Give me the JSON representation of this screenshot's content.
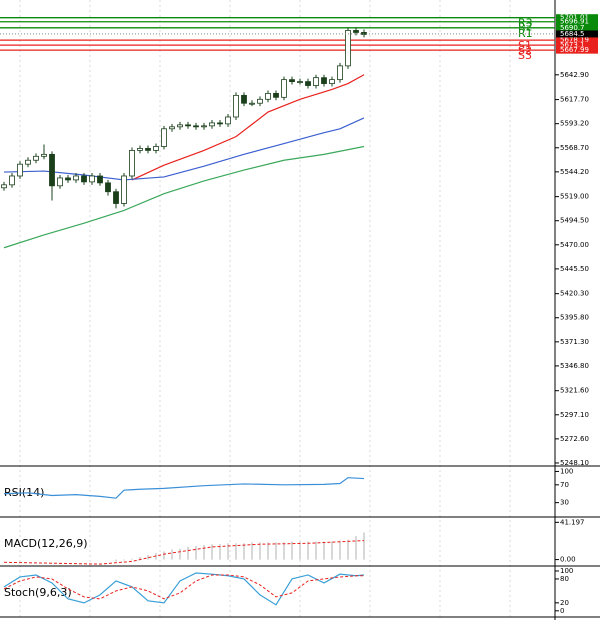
{
  "chart_data": [
    {
      "type": "candlestick",
      "panel": [
        0,
        466
      ],
      "color": "#1b3f1b",
      "ylim": [
        5245,
        5719
      ],
      "yticks": [
        {
          "value": 5642.9,
          "label": "5642.90"
        },
        {
          "value": 5617.7,
          "label": "5617.70"
        },
        {
          "value": 5593.2,
          "label": "5593.20"
        },
        {
          "value": 5568.7,
          "label": "5568.70"
        },
        {
          "value": 5544.2,
          "label": "5544.20"
        },
        {
          "value": 5519,
          "label": "5519.00"
        },
        {
          "value": 5494.5,
          "label": "5494.50"
        },
        {
          "value": 5470,
          "label": "5470.00"
        },
        {
          "value": 5445.5,
          "label": "5445.50"
        },
        {
          "value": 5420.3,
          "label": "5420.30"
        },
        {
          "value": 5395.8,
          "label": "5395.80"
        },
        {
          "value": 5371.3,
          "label": "5371.30"
        },
        {
          "value": 5346.8,
          "label": "5346.80"
        },
        {
          "value": 5321.6,
          "label": "5321.60"
        },
        {
          "value": 5297.1,
          "label": "5297.10"
        },
        {
          "value": 5272.6,
          "label": "5272.60"
        },
        {
          "value": 5248.1,
          "label": "5248.10"
        }
      ],
      "open": [
        5528,
        5531,
        5540,
        5552,
        5556,
        5560,
        5562,
        5530,
        5538,
        5536,
        5540,
        5534,
        5540,
        5533,
        5524,
        5512,
        5540,
        5566,
        5568,
        5566,
        5570,
        5588,
        5590,
        5592,
        5591,
        5590,
        5591,
        5594,
        5593,
        5600,
        5622,
        5614,
        5614,
        5618,
        5624,
        5620,
        5638,
        5636,
        5636,
        5632,
        5640,
        5634,
        5638,
        5652,
        5688,
        5686
      ],
      "high": [
        5534,
        5543,
        5555,
        5559,
        5563,
        5572,
        5565,
        5541,
        5541,
        5543,
        5543,
        5543,
        5543,
        5536,
        5527,
        5543,
        5569,
        5571,
        5571,
        5573,
        5591,
        5593,
        5595,
        5595,
        5594,
        5594,
        5597,
        5597,
        5603,
        5625,
        5625,
        5617,
        5621,
        5627,
        5627,
        5641,
        5641,
        5639,
        5639,
        5643,
        5643,
        5641,
        5655,
        5691,
        5691,
        5689
      ],
      "low": [
        5525,
        5528,
        5537,
        5549,
        5553,
        5557,
        5515,
        5527,
        5533,
        5533,
        5531,
        5531,
        5530,
        5520,
        5507,
        5509,
        5537,
        5563,
        5563,
        5563,
        5567,
        5585,
        5587,
        5588,
        5587,
        5587,
        5588,
        5590,
        5590,
        5597,
        5611,
        5611,
        5611,
        5615,
        5617,
        5617,
        5633,
        5633,
        5629,
        5629,
        5631,
        5631,
        5635,
        5649,
        5683,
        5681
      ],
      "close": [
        5531,
        5540,
        5552,
        5556,
        5560,
        5562,
        5530,
        5538,
        5536,
        5540,
        5534,
        5540,
        5533,
        5524,
        5512,
        5540,
        5566,
        5568,
        5566,
        5570,
        5588,
        5590,
        5592,
        5591,
        5590,
        5591,
        5594,
        5593,
        5600,
        5622,
        5614,
        5614,
        5618,
        5624,
        5620,
        5638,
        5636,
        5636,
        5632,
        5640,
        5634,
        5638,
        5652,
        5688,
        5686,
        5684
      ],
      "series": [
        {
          "color": "#e8211d",
          "x": [
            16,
            20,
            25,
            29,
            33,
            37,
            41,
            43,
            45
          ],
          "values": [
            5536,
            5551,
            5566,
            5580,
            5605,
            5618,
            5628,
            5634,
            5643
          ]
        },
        {
          "color": "#3b5fcf",
          "x": [
            0,
            5,
            10,
            15,
            20,
            25,
            30,
            35,
            40,
            42,
            45
          ],
          "values": [
            5544,
            5545,
            5541,
            5536,
            5539,
            5550,
            5562,
            5573,
            5584,
            5588,
            5599
          ]
        },
        {
          "color": "#3aa85a",
          "x": [
            0,
            5,
            10,
            15,
            20,
            25,
            30,
            35,
            40,
            45
          ],
          "values": [
            5467,
            5480,
            5492,
            5505,
            5522,
            5535,
            5546,
            5556,
            5562,
            5570
          ]
        }
      ],
      "levels": [
        {
          "name": "R3",
          "value": 5701.01,
          "color": "#0a8a0a"
        },
        {
          "name": "R2",
          "value": 5696.91,
          "color": "#0a8a0a"
        },
        {
          "name": "R1",
          "value": 5690.7,
          "color": "#0a8a0a"
        },
        {
          "name": "S1",
          "value": 5678.19,
          "color": "#e8211d"
        },
        {
          "name": "S2",
          "value": 5673.1,
          "color": "#e8211d"
        },
        {
          "name": "S3",
          "value": 5667.99,
          "color": "#e8211d"
        }
      ],
      "last": 5684.5
    },
    {
      "type": "line",
      "title": "RSI(14)",
      "panel": [
        467,
        516
      ],
      "ylim": [
        0,
        110
      ],
      "yticks": [
        100,
        70,
        30
      ],
      "series": [
        {
          "color": "#3a8fd8",
          "x": [
            0,
            3,
            6,
            9,
            12,
            14,
            15,
            17,
            20,
            25,
            30,
            35,
            40,
            42,
            43,
            45
          ],
          "values": [
            50,
            52,
            46,
            48,
            44,
            40,
            58,
            60,
            62,
            68,
            72,
            70,
            71,
            73,
            86,
            84
          ]
        }
      ]
    },
    {
      "type": "macd",
      "title": "MACD(12,26,9)",
      "panel": [
        518,
        565
      ],
      "ylim": [
        -6,
        46
      ],
      "yticks": [
        {
          "value": 41.197,
          "label": "41.197"
        },
        {
          "value": 0,
          "label": "0.00"
        }
      ],
      "bars": {
        "color": "#b0b0b0",
        "x": [
          14,
          15,
          16,
          17,
          18,
          19,
          20,
          21,
          22,
          23,
          24,
          25,
          26,
          27,
          28,
          29,
          30,
          31,
          32,
          33,
          34,
          35,
          36,
          37,
          38,
          39,
          40,
          41,
          42,
          43,
          44,
          45
        ],
        "values": [
          -2,
          -1,
          1,
          3,
          5,
          7,
          9,
          11,
          12,
          14,
          15,
          16,
          17,
          17,
          18,
          18,
          18,
          19,
          19,
          19,
          19,
          19,
          20,
          20,
          20,
          20,
          20,
          20,
          21,
          22,
          26,
          30
        ]
      },
      "series": [
        {
          "color": "#e8211d",
          "x": [
            0,
            6,
            12,
            16,
            20,
            26,
            32,
            38,
            45
          ],
          "values": [
            -3,
            -4,
            -5,
            -2,
            6,
            14,
            17,
            18,
            21
          ]
        }
      ]
    },
    {
      "type": "line",
      "title": "Stoch(9,6,3)",
      "panel": [
        567,
        616
      ],
      "ylim": [
        -13,
        110
      ],
      "yticks": [
        100,
        80,
        20,
        0
      ],
      "series": [
        {
          "color": "#3aa0d8",
          "x": [
            0,
            2,
            4,
            6,
            8,
            10,
            12,
            14,
            16,
            18,
            20,
            22,
            24,
            26,
            28,
            30,
            32,
            34,
            36,
            38,
            40,
            42,
            44,
            45
          ],
          "values": [
            60,
            85,
            90,
            70,
            30,
            20,
            40,
            75,
            60,
            25,
            20,
            75,
            95,
            92,
            88,
            80,
            40,
            15,
            80,
            90,
            70,
            92,
            88,
            90
          ]
        },
        {
          "color": "#e8211d",
          "dashed": true,
          "x": [
            0,
            2,
            4,
            6,
            8,
            10,
            12,
            14,
            16,
            18,
            20,
            22,
            24,
            26,
            28,
            30,
            32,
            34,
            36,
            38,
            40,
            42,
            44,
            45
          ],
          "values": [
            55,
            75,
            85,
            80,
            55,
            35,
            30,
            50,
            60,
            50,
            30,
            45,
            75,
            90,
            90,
            85,
            65,
            35,
            45,
            75,
            80,
            85,
            88,
            88
          ]
        }
      ]
    }
  ]
}
